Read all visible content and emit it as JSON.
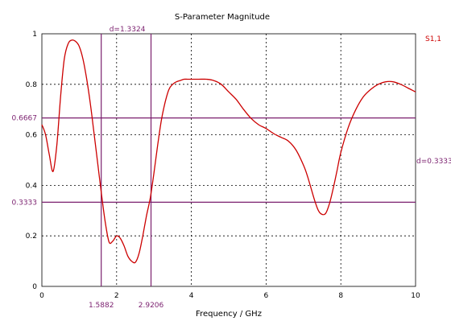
{
  "chart_data": {
    "type": "line",
    "title": "S-Parameter Magnitude",
    "xlabel": "Frequency / GHz",
    "ylabel": "",
    "xlim": [
      0,
      10
    ],
    "ylim": [
      0,
      1
    ],
    "grid": true,
    "x_ticks": [
      "0",
      "2",
      "4",
      "6",
      "8",
      "10"
    ],
    "y_ticks": [
      "0",
      "0.2",
      "0.4",
      "0.6",
      "0.8",
      "1"
    ],
    "series": [
      {
        "name": "S1,1",
        "color": "#cc0000",
        "x": [
          0,
          0.1,
          0.2,
          0.3,
          0.4,
          0.5,
          0.6,
          0.7,
          0.8,
          0.9,
          1.0,
          1.1,
          1.2,
          1.3,
          1.4,
          1.5,
          1.6,
          1.7,
          1.8,
          1.9,
          2.0,
          2.1,
          2.2,
          2.3,
          2.4,
          2.5,
          2.6,
          2.7,
          2.8,
          2.9,
          3.0,
          3.1,
          3.2,
          3.3,
          3.4,
          3.5,
          3.6,
          3.7,
          3.8,
          3.9,
          4.0,
          4.2,
          4.4,
          4.6,
          4.8,
          5.0,
          5.2,
          5.4,
          5.6,
          5.8,
          6.0,
          6.2,
          6.4,
          6.6,
          6.8,
          7.0,
          7.1,
          7.2,
          7.3,
          7.4,
          7.5,
          7.6,
          7.7,
          7.8,
          7.9,
          8.0,
          8.2,
          8.4,
          8.6,
          8.8,
          9.0,
          9.2,
          9.4,
          9.6,
          9.8,
          10.0
        ],
        "y": [
          0.64,
          0.6,
          0.52,
          0.455,
          0.56,
          0.75,
          0.9,
          0.96,
          0.975,
          0.97,
          0.95,
          0.9,
          0.82,
          0.72,
          0.6,
          0.48,
          0.36,
          0.25,
          0.175,
          0.18,
          0.2,
          0.19,
          0.16,
          0.12,
          0.1,
          0.095,
          0.13,
          0.2,
          0.28,
          0.35,
          0.45,
          0.56,
          0.66,
          0.73,
          0.78,
          0.8,
          0.81,
          0.815,
          0.82,
          0.82,
          0.82,
          0.82,
          0.82,
          0.815,
          0.8,
          0.77,
          0.74,
          0.7,
          0.665,
          0.64,
          0.625,
          0.605,
          0.59,
          0.575,
          0.54,
          0.48,
          0.44,
          0.39,
          0.34,
          0.3,
          0.285,
          0.29,
          0.33,
          0.39,
          0.46,
          0.53,
          0.63,
          0.7,
          0.75,
          0.78,
          0.8,
          0.81,
          0.81,
          0.8,
          0.785,
          0.77
        ]
      }
    ],
    "markers": {
      "vertical": [
        {
          "x": 1.5882,
          "label": "1.5882"
        },
        {
          "x": 2.9206,
          "label": "2.9206"
        }
      ],
      "vertical_delta_label": "d=1.3324",
      "horizontal": [
        {
          "y": 0.6667,
          "label": "0.6667"
        },
        {
          "y": 0.3333,
          "label": "0.3333"
        }
      ],
      "horizontal_delta_label": "d=0.3333",
      "color": "#7a1f6e"
    }
  }
}
